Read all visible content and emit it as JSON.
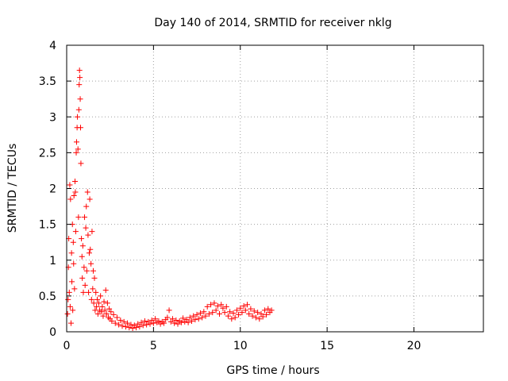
{
  "chart_data": {
    "type": "scatter",
    "title": "Day 140 of 2014, SRMTID for receiver nklg",
    "xlabel": "GPS time / hours",
    "ylabel": "SRMTID / TECUs",
    "xlim": [
      0,
      24
    ],
    "ylim": [
      0,
      4
    ],
    "xticks": [
      0,
      5,
      10,
      15,
      20
    ],
    "yticks": [
      0,
      0.5,
      1,
      1.5,
      2,
      2.5,
      3,
      3.5,
      4
    ],
    "xtick_labels": [
      "0",
      "5",
      "10",
      "15",
      "20"
    ],
    "ytick_labels": [
      "0",
      "0.5",
      "1",
      "1.5",
      "2",
      "2.5",
      "3",
      "3.5",
      "4"
    ],
    "grid": true,
    "marker": "plus",
    "series": [
      {
        "name": "SRMTID",
        "color": "#ff0000",
        "points": [
          [
            0.05,
            0.25
          ],
          [
            0.08,
            0.45
          ],
          [
            0.1,
            0.9
          ],
          [
            0.12,
            1.3
          ],
          [
            0.15,
            0.55
          ],
          [
            0.18,
            2.05
          ],
          [
            0.2,
            0.35
          ],
          [
            0.22,
            1.85
          ],
          [
            0.25,
            0.12
          ],
          [
            0.28,
            1.1
          ],
          [
            0.3,
            0.7
          ],
          [
            0.33,
            1.5
          ],
          [
            0.35,
            0.3
          ],
          [
            0.38,
            1.25
          ],
          [
            0.4,
            0.95
          ],
          [
            0.42,
            1.9
          ],
          [
            0.45,
            0.6
          ],
          [
            0.48,
            2.1
          ],
          [
            0.5,
            1.95
          ],
          [
            0.52,
            1.4
          ],
          [
            0.55,
            2.5
          ],
          [
            0.57,
            2.65
          ],
          [
            0.6,
            2.85
          ],
          [
            0.62,
            3.0
          ],
          [
            0.65,
            2.55
          ],
          [
            0.68,
            1.6
          ],
          [
            0.7,
            3.1
          ],
          [
            0.72,
            3.45
          ],
          [
            0.74,
            3.65
          ],
          [
            0.76,
            3.55
          ],
          [
            0.78,
            3.25
          ],
          [
            0.8,
            2.85
          ],
          [
            0.82,
            2.35
          ],
          [
            0.85,
            1.3
          ],
          [
            0.88,
            1.05
          ],
          [
            0.9,
            0.75
          ],
          [
            0.93,
            1.2
          ],
          [
            0.96,
            0.55
          ],
          [
            1.0,
            0.9
          ],
          [
            1.03,
            1.6
          ],
          [
            1.06,
            0.65
          ],
          [
            1.1,
            1.45
          ],
          [
            1.13,
            1.75
          ],
          [
            1.16,
            0.85
          ],
          [
            1.2,
            1.95
          ],
          [
            1.23,
            1.35
          ],
          [
            1.26,
            0.55
          ],
          [
            1.3,
            1.1
          ],
          [
            1.33,
            1.85
          ],
          [
            1.36,
            1.15
          ],
          [
            1.4,
            0.95
          ],
          [
            1.43,
            0.45
          ],
          [
            1.46,
            1.4
          ],
          [
            1.5,
            0.6
          ],
          [
            1.53,
            0.85
          ],
          [
            1.56,
            0.4
          ],
          [
            1.6,
            0.75
          ],
          [
            1.64,
            0.3
          ],
          [
            1.68,
            0.55
          ],
          [
            1.72,
            0.35
          ],
          [
            1.76,
            0.45
          ],
          [
            1.8,
            0.25
          ],
          [
            1.85,
            0.4
          ],
          [
            1.9,
            0.3
          ],
          [
            1.95,
            0.5
          ],
          [
            2.0,
            0.28
          ],
          [
            2.05,
            0.35
          ],
          [
            2.1,
            0.22
          ],
          [
            2.15,
            0.42
          ],
          [
            2.2,
            0.3
          ],
          [
            2.25,
            0.58
          ],
          [
            2.3,
            0.25
          ],
          [
            2.35,
            0.4
          ],
          [
            2.4,
            0.2
          ],
          [
            2.45,
            0.32
          ],
          [
            2.5,
            0.18
          ],
          [
            2.55,
            0.28
          ],
          [
            2.6,
            0.15
          ],
          [
            2.7,
            0.24
          ],
          [
            2.8,
            0.12
          ],
          [
            2.9,
            0.2
          ],
          [
            3.0,
            0.1
          ],
          [
            3.1,
            0.16
          ],
          [
            3.2,
            0.08
          ],
          [
            3.3,
            0.14
          ],
          [
            3.4,
            0.07
          ],
          [
            3.5,
            0.12
          ],
          [
            3.6,
            0.06
          ],
          [
            3.7,
            0.1
          ],
          [
            3.8,
            0.05
          ],
          [
            3.9,
            0.09
          ],
          [
            4.0,
            0.06
          ],
          [
            4.1,
            0.11
          ],
          [
            4.2,
            0.07
          ],
          [
            4.3,
            0.13
          ],
          [
            4.4,
            0.09
          ],
          [
            4.5,
            0.15
          ],
          [
            4.6,
            0.1
          ],
          [
            4.7,
            0.14
          ],
          [
            4.8,
            0.11
          ],
          [
            4.9,
            0.16
          ],
          [
            5.0,
            0.12
          ],
          [
            5.1,
            0.18
          ],
          [
            5.2,
            0.13
          ],
          [
            5.3,
            0.15
          ],
          [
            5.4,
            0.11
          ],
          [
            5.5,
            0.14
          ],
          [
            5.6,
            0.12
          ],
          [
            5.7,
            0.17
          ],
          [
            5.8,
            0.2
          ],
          [
            5.9,
            0.3
          ],
          [
            6.0,
            0.14
          ],
          [
            6.1,
            0.18
          ],
          [
            6.2,
            0.12
          ],
          [
            6.3,
            0.16
          ],
          [
            6.4,
            0.11
          ],
          [
            6.5,
            0.15
          ],
          [
            6.6,
            0.13
          ],
          [
            6.7,
            0.19
          ],
          [
            6.8,
            0.14
          ],
          [
            6.9,
            0.17
          ],
          [
            7.0,
            0.13
          ],
          [
            7.1,
            0.2
          ],
          [
            7.2,
            0.15
          ],
          [
            7.3,
            0.22
          ],
          [
            7.4,
            0.17
          ],
          [
            7.5,
            0.24
          ],
          [
            7.6,
            0.18
          ],
          [
            7.7,
            0.26
          ],
          [
            7.8,
            0.2
          ],
          [
            7.9,
            0.28
          ],
          [
            8.0,
            0.22
          ],
          [
            8.1,
            0.35
          ],
          [
            8.2,
            0.25
          ],
          [
            8.3,
            0.38
          ],
          [
            8.4,
            0.27
          ],
          [
            8.5,
            0.4
          ],
          [
            8.6,
            0.3
          ],
          [
            8.7,
            0.36
          ],
          [
            8.8,
            0.25
          ],
          [
            8.9,
            0.38
          ],
          [
            9.0,
            0.33
          ],
          [
            9.1,
            0.27
          ],
          [
            9.2,
            0.35
          ],
          [
            9.3,
            0.22
          ],
          [
            9.4,
            0.28
          ],
          [
            9.5,
            0.18
          ],
          [
            9.6,
            0.26
          ],
          [
            9.7,
            0.2
          ],
          [
            9.8,
            0.3
          ],
          [
            9.9,
            0.24
          ],
          [
            10.0,
            0.33
          ],
          [
            10.1,
            0.27
          ],
          [
            10.2,
            0.36
          ],
          [
            10.3,
            0.3
          ],
          [
            10.4,
            0.38
          ],
          [
            10.5,
            0.25
          ],
          [
            10.6,
            0.32
          ],
          [
            10.7,
            0.22
          ],
          [
            10.8,
            0.29
          ],
          [
            10.9,
            0.2
          ],
          [
            11.0,
            0.27
          ],
          [
            11.1,
            0.18
          ],
          [
            11.2,
            0.25
          ],
          [
            11.3,
            0.21
          ],
          [
            11.4,
            0.3
          ],
          [
            11.5,
            0.24
          ],
          [
            11.6,
            0.32
          ],
          [
            11.7,
            0.27
          ],
          [
            11.8,
            0.3
          ]
        ]
      }
    ]
  }
}
